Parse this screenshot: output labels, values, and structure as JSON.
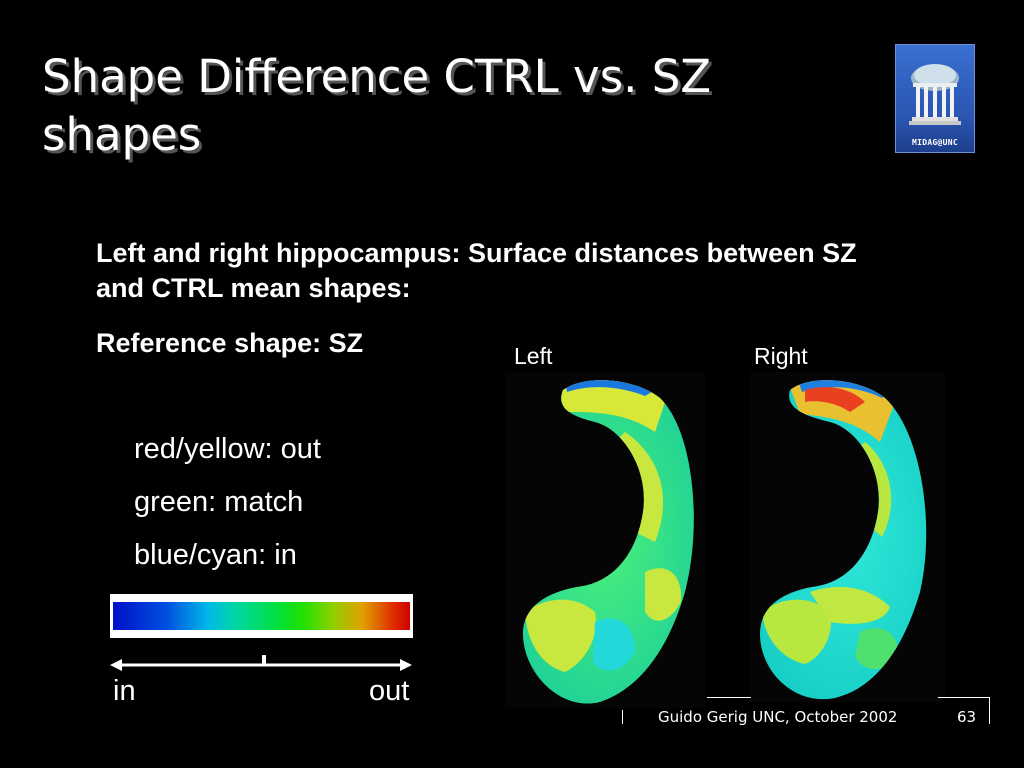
{
  "slide": {
    "title": "Shape Difference CTRL vs. SZ shapes",
    "heading": "Left and right hippocampus: Surface distances between SZ and CTRL mean shapes:",
    "reference": "Reference shape: SZ",
    "legend": {
      "red_yellow": "red/yellow: out",
      "green": "green: match",
      "blue_cyan": "blue/cyan: in"
    },
    "colorbar": {
      "left_label": "in",
      "right_label": "out"
    },
    "panels": {
      "left_label": "Left",
      "right_label": "Right"
    },
    "logo_text": "MIDAG@UNC",
    "footer": {
      "text": "Guido Gerig UNC, October 2002",
      "page_number": "63"
    }
  }
}
